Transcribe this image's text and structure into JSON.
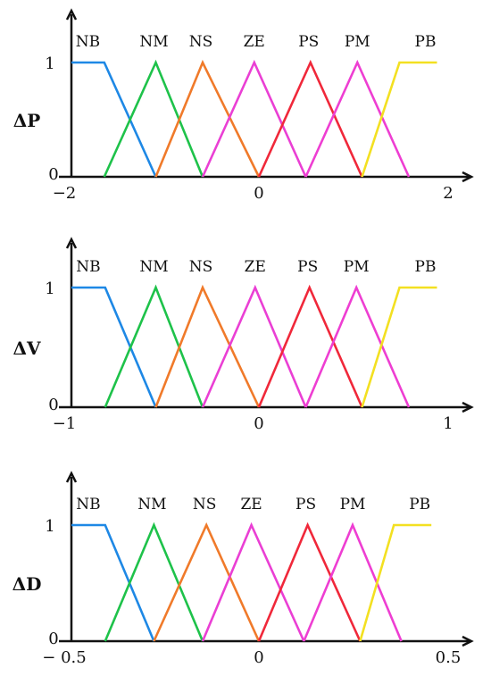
{
  "colors": {
    "NB": "#1e88e5",
    "NM": "#1ec24a",
    "NS": "#f07a2a",
    "ZE": "#ea3fd4",
    "PS": "#f0283a",
    "PM": "#ee3ed2",
    "PB": "#f3e021",
    "axis": "#111111"
  },
  "chart_data": [
    {
      "type": "line",
      "ylabel": "ΔP",
      "xlim": [
        -2,
        2
      ],
      "ylim": [
        0,
        1
      ],
      "xticks": [
        "−2",
        "0",
        "2"
      ],
      "yticks": [
        "0",
        "1"
      ],
      "series": [
        {
          "name": "NB",
          "x": [
            -2,
            -1.65,
            -1.1
          ],
          "y": [
            1,
            1,
            0
          ]
        },
        {
          "name": "NM",
          "x": [
            -1.65,
            -1.1,
            -0.6
          ],
          "y": [
            0,
            1,
            0
          ]
        },
        {
          "name": "NS",
          "x": [
            -1.1,
            -0.6,
            0
          ],
          "y": [
            0,
            1,
            0
          ]
        },
        {
          "name": "ZE",
          "x": [
            -0.6,
            -0.05,
            0.5
          ],
          "y": [
            0,
            1,
            0
          ]
        },
        {
          "name": "PS",
          "x": [
            0,
            0.55,
            1.1
          ],
          "y": [
            0,
            1,
            0
          ]
        },
        {
          "name": "PM",
          "x": [
            0.5,
            1.05,
            1.6
          ],
          "y": [
            0,
            1,
            0
          ]
        },
        {
          "name": "PB",
          "x": [
            1.1,
            1.5,
            1.9
          ],
          "y": [
            0,
            1,
            1
          ]
        }
      ]
    },
    {
      "type": "line",
      "ylabel": "ΔV",
      "xlim": [
        -1,
        1
      ],
      "ylim": [
        0,
        1
      ],
      "xticks": [
        "−1",
        "0",
        "1"
      ],
      "yticks": [
        "0",
        "1"
      ],
      "series": [
        {
          "name": "NB",
          "x": [
            -1,
            -0.82,
            -0.55
          ],
          "y": [
            1,
            1,
            0
          ]
        },
        {
          "name": "NM",
          "x": [
            -0.82,
            -0.55,
            -0.3
          ],
          "y": [
            0,
            1,
            0
          ]
        },
        {
          "name": "NS",
          "x": [
            -0.55,
            -0.3,
            0
          ],
          "y": [
            0,
            1,
            0
          ]
        },
        {
          "name": "ZE",
          "x": [
            -0.3,
            -0.02,
            0.25
          ],
          "y": [
            0,
            1,
            0
          ]
        },
        {
          "name": "PS",
          "x": [
            0,
            0.27,
            0.55
          ],
          "y": [
            0,
            1,
            0
          ]
        },
        {
          "name": "PM",
          "x": [
            0.25,
            0.52,
            0.8
          ],
          "y": [
            0,
            1,
            0
          ]
        },
        {
          "name": "PB",
          "x": [
            0.55,
            0.75,
            0.95
          ],
          "y": [
            0,
            1,
            1
          ]
        }
      ]
    },
    {
      "type": "line",
      "ylabel": "ΔD",
      "xlim": [
        -0.5,
        0.5
      ],
      "ylim": [
        0,
        1
      ],
      "xticks": [
        "− 0.5",
        "0",
        "0.5"
      ],
      "yticks": [
        "0",
        "1"
      ],
      "series": [
        {
          "name": "NB",
          "x": [
            -0.5,
            -0.41,
            -0.28
          ],
          "y": [
            1,
            1,
            0
          ]
        },
        {
          "name": "NM",
          "x": [
            -0.41,
            -0.28,
            -0.15
          ],
          "y": [
            0,
            1,
            0
          ]
        },
        {
          "name": "NS",
          "x": [
            -0.28,
            -0.14,
            0
          ],
          "y": [
            0,
            1,
            0
          ]
        },
        {
          "name": "ZE",
          "x": [
            -0.15,
            -0.02,
            0.12
          ],
          "y": [
            0,
            1,
            0
          ]
        },
        {
          "name": "PS",
          "x": [
            0,
            0.13,
            0.27
          ],
          "y": [
            0,
            1,
            0
          ]
        },
        {
          "name": "PM",
          "x": [
            0.12,
            0.25,
            0.38
          ],
          "y": [
            0,
            1,
            0
          ]
        },
        {
          "name": "PB",
          "x": [
            0.27,
            0.36,
            0.46
          ],
          "y": [
            0,
            1,
            1
          ]
        }
      ]
    }
  ]
}
